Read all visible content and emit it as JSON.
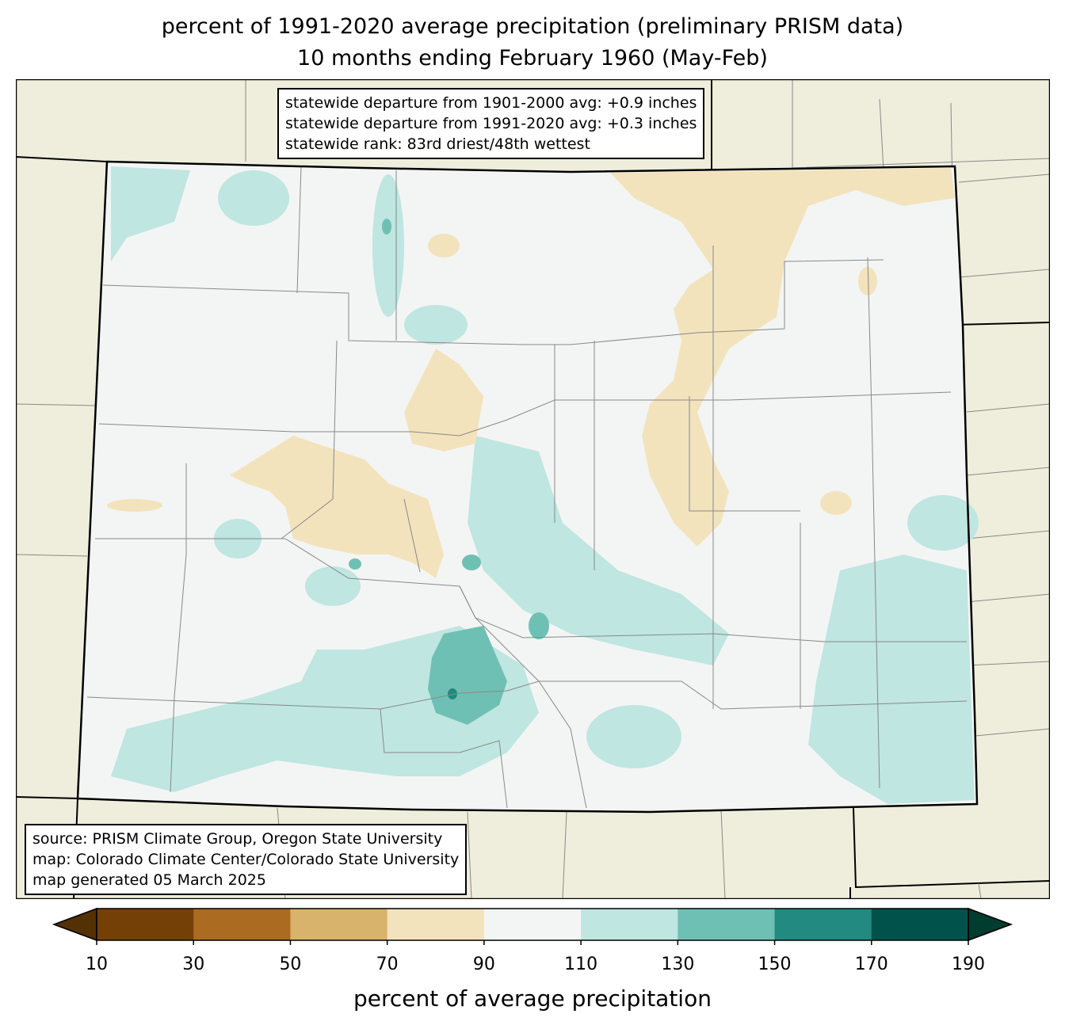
{
  "title": {
    "line1": "percent of 1991-2020 average precipitation (preliminary PRISM data)",
    "line2": "10 months ending February 1960 (May-Feb)"
  },
  "stats_box": {
    "line1": "statewide departure from 1901-2000 avg: +0.9 inches",
    "line2": "statewide departure from 1991-2020 avg: +0.3 inches",
    "line3": "statewide rank: 83rd driest/48th wettest"
  },
  "source_box": {
    "line1": "source: PRISM Climate Group, Oregon State University",
    "line2": "map: Colorado Climate Center/Colorado State University",
    "line3": "map generated 05 March 2025"
  },
  "colorbar": {
    "label": "percent of average precipitation",
    "ticks": [
      "10",
      "30",
      "50",
      "70",
      "90",
      "110",
      "130",
      "150",
      "170",
      "190"
    ],
    "colors": [
      "#754008",
      "#ab6c22",
      "#d8b36b",
      "#f3e3bd",
      "#f3f5f4",
      "#bfe6e0",
      "#6fc0b4",
      "#228a80",
      "#01524a"
    ],
    "under_color": "#543005",
    "over_color": "#003c30"
  },
  "map_colors": {
    "background": "#efeedd",
    "normal": "#f3f5f4",
    "wet": "#bfe6e0",
    "wetter": "#6fc0b4",
    "dry": "#f3e3bd"
  }
}
